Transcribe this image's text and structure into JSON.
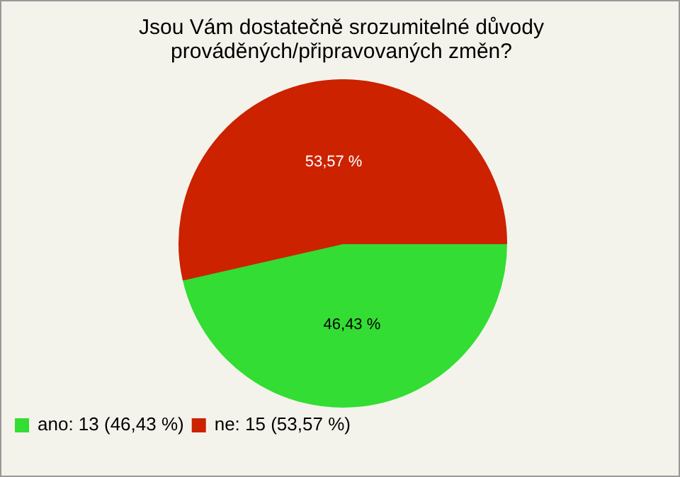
{
  "chart_data": {
    "type": "pie",
    "title": "Jsou Vám dostatečně srozumitelné důvody prováděných/připravovaných změn?",
    "categories": [
      "ano: 13 (46,43 %)",
      "ne: 15 (53,57 %)"
    ],
    "values": [
      46.43,
      53.57
    ],
    "colors": [
      "#33dd33",
      "#cc2200"
    ],
    "value_labels": [
      "46,43 %",
      "53,57 %"
    ],
    "legend": "bottom left"
  }
}
